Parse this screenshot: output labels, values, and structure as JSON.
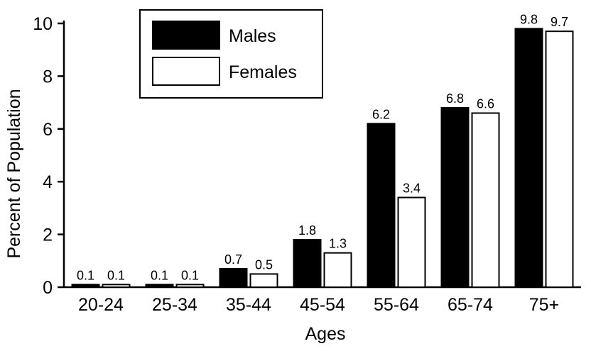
{
  "chart_data": {
    "type": "bar",
    "categories": [
      "20-24",
      "25-34",
      "35-44",
      "45-54",
      "55-64",
      "65-74",
      "75+"
    ],
    "series": [
      {
        "name": "Males",
        "values": [
          0.1,
          0.1,
          0.7,
          1.8,
          6.2,
          6.8,
          9.8
        ],
        "color": "#000000"
      },
      {
        "name": "Females",
        "values": [
          0.1,
          0.1,
          0.5,
          1.3,
          3.4,
          6.6,
          9.7
        ],
        "color": "#ffffff"
      }
    ],
    "xlabel": "Ages",
    "ylabel": "Percent of Population",
    "ylim": [
      0,
      10
    ],
    "yticks": [
      0,
      2,
      4,
      6,
      8,
      10
    ],
    "grid": false,
    "legend_position": "top-left"
  }
}
